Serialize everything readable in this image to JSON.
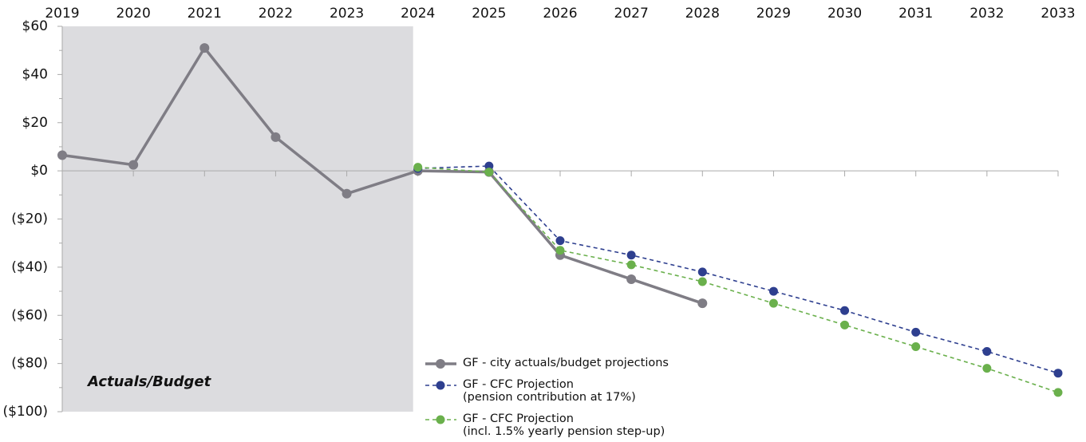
{
  "chart_data": {
    "type": "line",
    "annotation": "Actuals/Budget",
    "x": [
      2019,
      2020,
      2021,
      2022,
      2023,
      2024,
      2025,
      2026,
      2027,
      2028,
      2029,
      2030,
      2031,
      2032,
      2033
    ],
    "xlim": [
      2019,
      2033
    ],
    "xticks": [
      2019,
      2020,
      2021,
      2022,
      2023,
      2024,
      2025,
      2026,
      2027,
      2028,
      2029,
      2030,
      2031,
      2032,
      2033
    ],
    "ylim": [
      -100,
      60
    ],
    "yticks": [
      {
        "value": 60,
        "label": "$60"
      },
      {
        "value": 40,
        "label": "$40"
      },
      {
        "value": 20,
        "label": "$20"
      },
      {
        "value": 0,
        "label": "$0"
      },
      {
        "value": -20,
        "label": "($20)"
      },
      {
        "value": -40,
        "label": "($40)"
      },
      {
        "value": -60,
        "label": "($60)"
      },
      {
        "value": -80,
        "label": "($80)"
      },
      {
        "value": -100,
        "label": "($100)"
      }
    ],
    "series": [
      {
        "name": "GF - city actuals/budget projections",
        "color": "#7f7d85",
        "style": "solid",
        "values": [
          6.5,
          2.5,
          51,
          14,
          -9.5,
          0,
          -0.5,
          -35,
          -45,
          -55,
          null,
          null,
          null,
          null,
          null
        ]
      },
      {
        "name": "GF - CFC Projection\n(pension contribution at 17%)",
        "color": "#2e3f8f",
        "style": "dashed",
        "values": [
          null,
          null,
          null,
          null,
          null,
          1,
          2,
          -29,
          -35,
          -42,
          -50,
          -58,
          -67,
          -75,
          -84
        ]
      },
      {
        "name": "GF - CFC Projection\n(incl. 1.5% yearly pension step-up)",
        "color": "#6ab04c",
        "style": "dashed",
        "values": [
          null,
          null,
          null,
          null,
          null,
          1.5,
          -0.5,
          -33,
          -39,
          -46,
          -55,
          -64,
          -73,
          -82,
          -92
        ]
      }
    ]
  }
}
